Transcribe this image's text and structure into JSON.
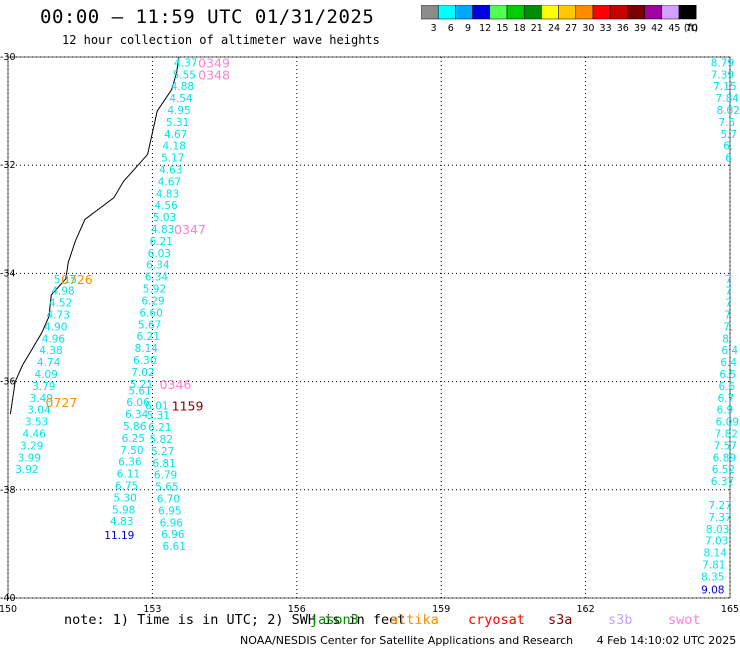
{
  "header": {
    "title": "00:00 – 11:59 UTC 01/31/2025",
    "subtitle": "12 hour collection of altimeter wave heights"
  },
  "colorbar": {
    "unit": "(ft)",
    "stops": [
      {
        "label": "3",
        "color": "#8c8c8c"
      },
      {
        "label": "6",
        "color": "#00ffff"
      },
      {
        "label": "9",
        "color": "#00a8ff"
      },
      {
        "label": "12",
        "color": "#0000e6"
      },
      {
        "label": "15",
        "color": "#50ff50"
      },
      {
        "label": "18",
        "color": "#00cc00"
      },
      {
        "label": "21",
        "color": "#008c00"
      },
      {
        "label": "24",
        "color": "#ffff00"
      },
      {
        "label": "27",
        "color": "#ffc800"
      },
      {
        "label": "30",
        "color": "#ff8c00"
      },
      {
        "label": "33",
        "color": "#ff0000"
      },
      {
        "label": "36",
        "color": "#c80000"
      },
      {
        "label": "39",
        "color": "#780000"
      },
      {
        "label": "42",
        "color": "#a000a0"
      },
      {
        "label": "45",
        "color": "#d2a0ff"
      },
      {
        "label": "70",
        "color": "#000000"
      }
    ]
  },
  "map": {
    "lon_ticks": [
      "150",
      "153",
      "156",
      "159",
      "162",
      "165"
    ],
    "lat_ticks": [
      "-30",
      "-32",
      "-34",
      "-36",
      "-38",
      "-40"
    ],
    "lon_range": [
      150,
      165
    ],
    "lat_range": [
      -40,
      -30
    ]
  },
  "tracks": [
    {
      "color": "#00e5ee",
      "labels": [
        {
          "lon": 153.45,
          "lat": -30.1,
          "v": "4.37"
        },
        {
          "lon": 153.42,
          "lat": -30.32,
          "v": "5.55"
        },
        {
          "lon": 153.38,
          "lat": -30.54,
          "v": "4.88"
        },
        {
          "lon": 153.35,
          "lat": -30.76,
          "v": "4.54"
        },
        {
          "lon": 153.31,
          "lat": -30.98,
          "v": "4.95"
        },
        {
          "lon": 153.28,
          "lat": -31.2,
          "v": "5.31"
        },
        {
          "lon": 153.24,
          "lat": -31.42,
          "v": "4.67"
        },
        {
          "lon": 153.21,
          "lat": -31.64,
          "v": "4.18"
        },
        {
          "lon": 153.18,
          "lat": -31.86,
          "v": "5.17"
        },
        {
          "lon": 153.14,
          "lat": -32.08,
          "v": "4.63"
        },
        {
          "lon": 153.11,
          "lat": -32.3,
          "v": "4.67"
        },
        {
          "lon": 153.07,
          "lat": -32.52,
          "v": "4.83"
        },
        {
          "lon": 153.04,
          "lat": -32.74,
          "v": "4.56"
        },
        {
          "lon": 153.01,
          "lat": -32.96,
          "v": "5.03"
        },
        {
          "lon": 152.97,
          "lat": -33.18,
          "v": "4.83"
        },
        {
          "lon": 152.94,
          "lat": -33.4,
          "v": "6.21"
        },
        {
          "lon": 152.9,
          "lat": -33.62,
          "v": "6.03"
        },
        {
          "lon": 152.87,
          "lat": -33.84,
          "v": "6.34"
        },
        {
          "lon": 152.84,
          "lat": -34.06,
          "v": "6.34"
        },
        {
          "lon": 152.8,
          "lat": -34.28,
          "v": "5.92"
        },
        {
          "lon": 152.77,
          "lat": -34.5,
          "v": "6.29"
        },
        {
          "lon": 152.73,
          "lat": -34.72,
          "v": "6.60"
        },
        {
          "lon": 152.7,
          "lat": -34.94,
          "v": "5.67"
        },
        {
          "lon": 152.67,
          "lat": -35.16,
          "v": "6.21"
        },
        {
          "lon": 152.63,
          "lat": -35.38,
          "v": "8.14"
        },
        {
          "lon": 152.6,
          "lat": -35.6,
          "v": "6.30"
        },
        {
          "lon": 152.56,
          "lat": -35.82,
          "v": "7.02"
        },
        {
          "lon": 152.53,
          "lat": -36.04,
          "v": "5.21"
        },
        {
          "lon": 152.5,
          "lat": -36.16,
          "v": "5.61"
        },
        {
          "lon": 152.46,
          "lat": -36.38,
          "v": "6.06"
        },
        {
          "lon": 152.43,
          "lat": -36.6,
          "v": "6.34"
        },
        {
          "lon": 152.39,
          "lat": -36.82,
          "v": "5.86"
        },
        {
          "lon": 152.36,
          "lat": -37.04,
          "v": "6.25"
        },
        {
          "lon": 152.33,
          "lat": -37.26,
          "v": "7.50"
        },
        {
          "lon": 152.29,
          "lat": -37.48,
          "v": "6.36"
        },
        {
          "lon": 152.26,
          "lat": -37.7,
          "v": "6.11"
        },
        {
          "lon": 152.22,
          "lat": -37.92,
          "v": "6.75"
        },
        {
          "lon": 152.19,
          "lat": -38.14,
          "v": "5.30"
        },
        {
          "lon": 152.16,
          "lat": -38.36,
          "v": "5.98"
        },
        {
          "lon": 152.12,
          "lat": -38.58,
          "v": "4.83"
        }
      ]
    },
    {
      "color": "#00e5ee",
      "labels": [
        {
          "lon": 152.85,
          "lat": -36.44,
          "v": "6.01"
        },
        {
          "lon": 152.88,
          "lat": -36.62,
          "v": "5.31"
        },
        {
          "lon": 152.91,
          "lat": -36.84,
          "v": "6.21"
        },
        {
          "lon": 152.94,
          "lat": -37.06,
          "v": "5.82"
        },
        {
          "lon": 152.97,
          "lat": -37.28,
          "v": "5.27"
        },
        {
          "lon": 153.0,
          "lat": -37.5,
          "v": "6.81"
        },
        {
          "lon": 153.03,
          "lat": -37.72,
          "v": "6.79"
        },
        {
          "lon": 153.06,
          "lat": -37.94,
          "v": "5.65"
        },
        {
          "lon": 153.09,
          "lat": -38.16,
          "v": "6.70"
        },
        {
          "lon": 153.12,
          "lat": -38.38,
          "v": "6.95"
        },
        {
          "lon": 153.15,
          "lat": -38.6,
          "v": "6.96"
        },
        {
          "lon": 153.18,
          "lat": -38.82,
          "v": "6.96"
        },
        {
          "lon": 153.21,
          "lat": -39.04,
          "v": "6.61"
        }
      ]
    },
    {
      "color": "#00e5ee",
      "labels": [
        {
          "lon": 150.95,
          "lat": -34.1,
          "v": "5.15"
        },
        {
          "lon": 150.9,
          "lat": -34.32,
          "v": "4.98"
        },
        {
          "lon": 150.85,
          "lat": -34.54,
          "v": "4.52"
        },
        {
          "lon": 150.8,
          "lat": -34.76,
          "v": "4.73"
        },
        {
          "lon": 150.75,
          "lat": -34.98,
          "v": "4.90"
        },
        {
          "lon": 150.7,
          "lat": -35.2,
          "v": "4.96"
        },
        {
          "lon": 150.65,
          "lat": -35.42,
          "v": "4.38"
        },
        {
          "lon": 150.6,
          "lat": -35.64,
          "v": "4.74"
        },
        {
          "lon": 150.55,
          "lat": -35.86,
          "v": "4.09"
        },
        {
          "lon": 150.5,
          "lat": -36.08,
          "v": "3.79"
        },
        {
          "lon": 150.45,
          "lat": -36.3,
          "v": "3.49"
        },
        {
          "lon": 150.4,
          "lat": -36.52,
          "v": "3.04"
        },
        {
          "lon": 150.35,
          "lat": -36.74,
          "v": "3.53"
        },
        {
          "lon": 150.3,
          "lat": -36.96,
          "v": "4.46"
        },
        {
          "lon": 150.25,
          "lat": -37.18,
          "v": "3.29"
        },
        {
          "lon": 150.2,
          "lat": -37.4,
          "v": "3.99"
        },
        {
          "lon": 150.15,
          "lat": -37.62,
          "v": "3.92"
        }
      ]
    },
    {
      "color": "#00e5ee",
      "labels": [
        {
          "lon": 164.6,
          "lat": -30.1,
          "v": "8.79"
        },
        {
          "lon": 164.6,
          "lat": -30.32,
          "v": "7.39"
        },
        {
          "lon": 164.65,
          "lat": -30.54,
          "v": "7.15"
        },
        {
          "lon": 164.7,
          "lat": -30.76,
          "v": "7.84"
        },
        {
          "lon": 164.72,
          "lat": -30.98,
          "v": "8.02"
        },
        {
          "lon": 164.76,
          "lat": -31.2,
          "v": "7.5"
        },
        {
          "lon": 164.8,
          "lat": -31.42,
          "v": "5.7"
        },
        {
          "lon": 164.86,
          "lat": -31.64,
          "v": "6."
        },
        {
          "lon": 164.9,
          "lat": -31.86,
          "v": "6"
        },
        {
          "lon": 164.9,
          "lat": -34.1,
          "v": "7"
        },
        {
          "lon": 164.9,
          "lat": -34.32,
          "v": "7"
        },
        {
          "lon": 164.9,
          "lat": -34.54,
          "v": "7"
        },
        {
          "lon": 164.88,
          "lat": -34.76,
          "v": "7"
        },
        {
          "lon": 164.86,
          "lat": -34.98,
          "v": "7."
        },
        {
          "lon": 164.84,
          "lat": -35.2,
          "v": "8."
        },
        {
          "lon": 164.82,
          "lat": -35.42,
          "v": "6.4"
        },
        {
          "lon": 164.8,
          "lat": -35.64,
          "v": "6.4"
        },
        {
          "lon": 164.78,
          "lat": -35.86,
          "v": "6.5"
        },
        {
          "lon": 164.76,
          "lat": -36.08,
          "v": "6.6"
        },
        {
          "lon": 164.74,
          "lat": -36.3,
          "v": "6.7"
        },
        {
          "lon": 164.72,
          "lat": -36.52,
          "v": "6.9"
        },
        {
          "lon": 164.7,
          "lat": -36.74,
          "v": "6.09"
        },
        {
          "lon": 164.68,
          "lat": -36.96,
          "v": "7.82"
        },
        {
          "lon": 164.66,
          "lat": -37.18,
          "v": "7.57"
        },
        {
          "lon": 164.64,
          "lat": -37.4,
          "v": "6.89"
        },
        {
          "lon": 164.62,
          "lat": -37.62,
          "v": "6.52"
        },
        {
          "lon": 164.6,
          "lat": -37.84,
          "v": "6.37"
        },
        {
          "lon": 164.55,
          "lat": -38.28,
          "v": "7.27"
        },
        {
          "lon": 164.55,
          "lat": -38.5,
          "v": "7.37"
        },
        {
          "lon": 164.5,
          "lat": -38.72,
          "v": "8.03"
        },
        {
          "lon": 164.48,
          "lat": -38.94,
          "v": "7.03"
        },
        {
          "lon": 164.45,
          "lat": -39.16,
          "v": "8.14"
        },
        {
          "lon": 164.42,
          "lat": -39.38,
          "v": "7.81"
        },
        {
          "lon": 164.4,
          "lat": -39.6,
          "v": "8.35"
        }
      ]
    },
    {
      "color": "#0000cc",
      "labels": [
        {
          "lon": 152.0,
          "lat": -38.84,
          "v": "11.19"
        },
        {
          "lon": 164.4,
          "lat": -39.84,
          "v": "9.08"
        }
      ]
    }
  ],
  "time_labels": [
    {
      "lon": 153.95,
      "lat": -30.1,
      "v": "0349",
      "color": "#ff80d0"
    },
    {
      "lon": 153.95,
      "lat": -30.32,
      "v": "0348",
      "color": "#ff80d0"
    },
    {
      "lon": 153.45,
      "lat": -33.18,
      "v": "0347",
      "color": "#ff80d0"
    },
    {
      "lon": 153.15,
      "lat": -36.04,
      "v": "0346",
      "color": "#ff80d0"
    },
    {
      "lon": 153.4,
      "lat": -36.44,
      "v": "1159",
      "color": "#800000"
    },
    {
      "lon": 151.1,
      "lat": -34.1,
      "v": "0726",
      "color": "#ff8c00"
    },
    {
      "lon": 150.78,
      "lat": -36.38,
      "v": "0727",
      "color": "#ff8c00"
    }
  ],
  "legend": {
    "note": "note: 1) Time is in UTC; 2) SWH is in feet",
    "satellites": [
      {
        "name": "jason3",
        "color": "#008c00"
      },
      {
        "name": "altika",
        "color": "#ff8c00"
      },
      {
        "name": "cryosat",
        "color": "#ff0000"
      },
      {
        "name": "s3a",
        "color": "#800000"
      },
      {
        "name": "s3b",
        "color": "#c8a0ff"
      },
      {
        "name": "swot",
        "color": "#ff80d0"
      }
    ]
  },
  "credit": "NOAA/NESDIS Center for Satellite Applications and Research",
  "generated": "4 Feb 14:10:02 UTC 2025"
}
